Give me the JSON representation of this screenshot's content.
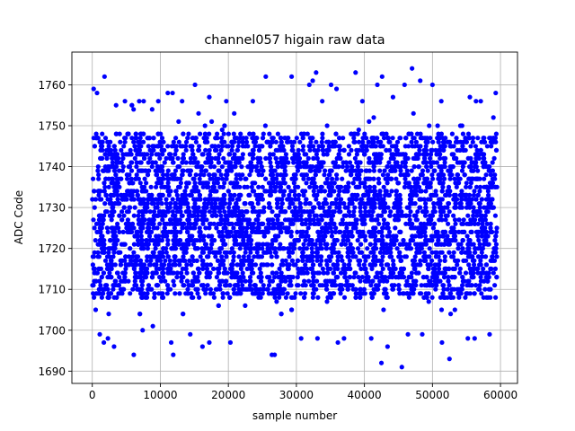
{
  "chart_data": {
    "type": "scatter",
    "title": "channel057 higain raw data",
    "xlabel": "sample number",
    "ylabel": "ADC Code",
    "xlim": [
      -3000,
      62500
    ],
    "ylim": [
      1687,
      1768
    ],
    "xticks": [
      0,
      10000,
      20000,
      30000,
      40000,
      50000,
      60000
    ],
    "yticks": [
      1690,
      1700,
      1710,
      1720,
      1730,
      1740,
      1750,
      1760
    ],
    "grid": true,
    "marker_color": "#0000ff",
    "n_samples": 60000,
    "x_range": [
      0,
      59500
    ],
    "dense_band": [
      1708,
      1748
    ],
    "points": [
      [
        200,
        1759
      ],
      [
        700,
        1758
      ],
      [
        1800,
        1762
      ],
      [
        3500,
        1755
      ],
      [
        4800,
        1756
      ],
      [
        6900,
        1756
      ],
      [
        8800,
        1754
      ],
      [
        9700,
        1756
      ],
      [
        11100,
        1758
      ],
      [
        11800,
        1758
      ],
      [
        13200,
        1756
      ],
      [
        15100,
        1760
      ],
      [
        17200,
        1757
      ],
      [
        19700,
        1756
      ],
      [
        23600,
        1756
      ],
      [
        25500,
        1762
      ],
      [
        29300,
        1762
      ],
      [
        31900,
        1760
      ],
      [
        32400,
        1761
      ],
      [
        32900,
        1763
      ],
      [
        33800,
        1756
      ],
      [
        35100,
        1760
      ],
      [
        35900,
        1759
      ],
      [
        38700,
        1763
      ],
      [
        39700,
        1756
      ],
      [
        41900,
        1760
      ],
      [
        42600,
        1762
      ],
      [
        44200,
        1757
      ],
      [
        45900,
        1760
      ],
      [
        47000,
        1764
      ],
      [
        48200,
        1761
      ],
      [
        50000,
        1760
      ],
      [
        51300,
        1756
      ],
      [
        55500,
        1757
      ],
      [
        56400,
        1756
      ],
      [
        57100,
        1756
      ],
      [
        59300,
        1758
      ],
      [
        500,
        1705
      ],
      [
        1100,
        1699
      ],
      [
        1700,
        1697
      ],
      [
        2300,
        1698
      ],
      [
        3200,
        1696
      ],
      [
        6100,
        1694
      ],
      [
        7400,
        1700
      ],
      [
        8900,
        1701
      ],
      [
        11600,
        1697
      ],
      [
        11900,
        1694
      ],
      [
        14400,
        1699
      ],
      [
        16200,
        1696
      ],
      [
        17200,
        1697
      ],
      [
        20300,
        1697
      ],
      [
        26400,
        1694
      ],
      [
        26800,
        1694
      ],
      [
        30700,
        1698
      ],
      [
        33100,
        1698
      ],
      [
        36100,
        1697
      ],
      [
        37000,
        1698
      ],
      [
        41000,
        1698
      ],
      [
        42500,
        1692
      ],
      [
        43400,
        1696
      ],
      [
        45500,
        1691
      ],
      [
        46400,
        1699
      ],
      [
        48500,
        1699
      ],
      [
        51400,
        1697
      ],
      [
        52500,
        1693
      ],
      [
        55200,
        1698
      ],
      [
        56200,
        1698
      ],
      [
        58400,
        1699
      ]
    ]
  }
}
